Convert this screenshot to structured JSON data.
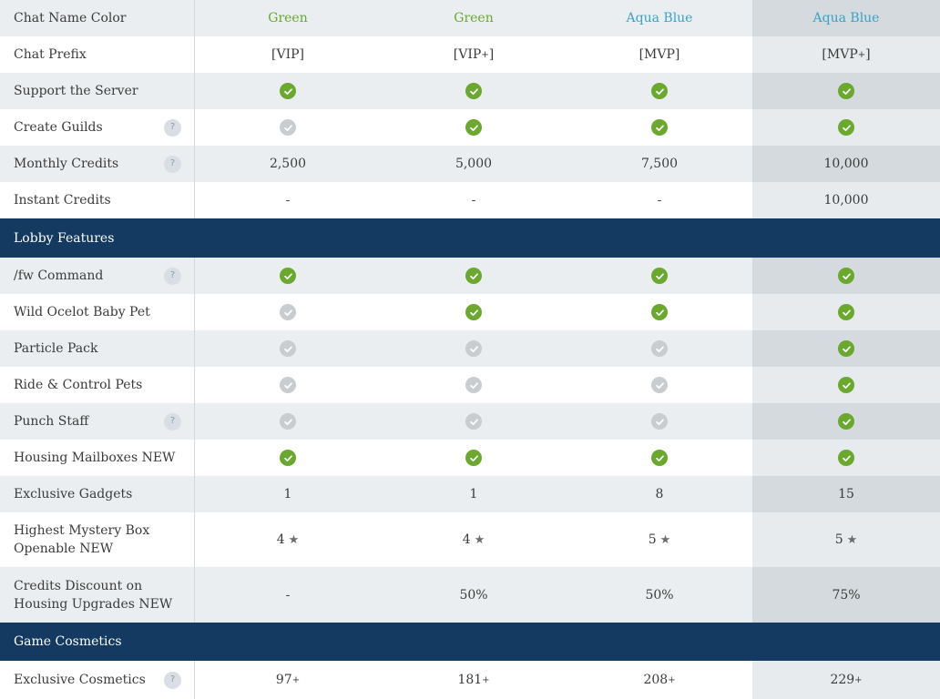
{
  "colors": {
    "accent_green": "#6aa82e",
    "accent_aqua": "#37a4c8",
    "section_bg": "#143a61"
  },
  "icons": {
    "check": "check-circle-icon",
    "help": "help-question-icon",
    "star": "star-icon"
  },
  "rows": {
    "chat_name_color": {
      "label": "Chat Name Color",
      "v1": "Green",
      "v2": "Green",
      "v3": "Aqua Blue",
      "v4": "Aqua Blue"
    },
    "chat_prefix": {
      "label": "Chat Prefix",
      "v1": "[VIP]",
      "v2": "[VIP",
      "v2_plus": "+",
      "v2_tail": "]",
      "v3": "[MVP]",
      "v4": "[MVP",
      "v4_plus": "+",
      "v4_tail": "]"
    },
    "support_server": {
      "label": "Support the Server",
      "v1": true,
      "v2": true,
      "v3": true,
      "v4": true
    },
    "create_guilds": {
      "label": "Create Guilds",
      "help": "?",
      "v1": false,
      "v2": true,
      "v3": true,
      "v4": true
    },
    "monthly_credits": {
      "label": "Monthly Credits",
      "help": "?",
      "v1": "2,500",
      "v2": "5,000",
      "v3": "7,500",
      "v4": "10,000"
    },
    "instant_credits": {
      "label": "Instant Credits",
      "v1": "-",
      "v2": "-",
      "v3": "-",
      "v4": "10,000"
    },
    "fw_command": {
      "label": "/fw Command",
      "help": "?",
      "v1": true,
      "v2": true,
      "v3": true,
      "v4": true
    },
    "ocelot_pet": {
      "label": "Wild Ocelot Baby Pet",
      "v1": false,
      "v2": true,
      "v3": true,
      "v4": true
    },
    "particle_pack": {
      "label": "Particle Pack",
      "v1": false,
      "v2": false,
      "v3": false,
      "v4": true
    },
    "ride_pets": {
      "label": "Ride & Control Pets",
      "v1": false,
      "v2": false,
      "v3": false,
      "v4": true
    },
    "punch_staff": {
      "label": "Punch Staff",
      "help": "?",
      "v1": false,
      "v2": false,
      "v3": false,
      "v4": true
    },
    "housing_mailboxes": {
      "label": "Housing Mailboxes NEW",
      "v1": true,
      "v2": true,
      "v3": true,
      "v4": true
    },
    "exclusive_gadgets": {
      "label": "Exclusive Gadgets",
      "v1": "1",
      "v2": "1",
      "v3": "8",
      "v4": "15"
    },
    "mystery_box": {
      "label_line1": "Highest Mystery Box",
      "label_line2": "Openable NEW",
      "v1": "4",
      "v2": "4",
      "v3": "5",
      "v4": "5",
      "star": "★"
    },
    "credits_discount": {
      "label_line1": "Credits Discount on",
      "label_line2": "Housing Upgrades NEW",
      "v1": "-",
      "v2": "50%",
      "v3": "50%",
      "v4": "75%"
    },
    "exclusive_cosmetics": {
      "label": "Exclusive Cosmetics",
      "help": "?",
      "v1": "97",
      "v2": "181",
      "v3": "208",
      "v4": "229",
      "plus": "+"
    }
  },
  "sections": {
    "lobby": "Lobby Features",
    "game": "Game Cosmetics"
  }
}
